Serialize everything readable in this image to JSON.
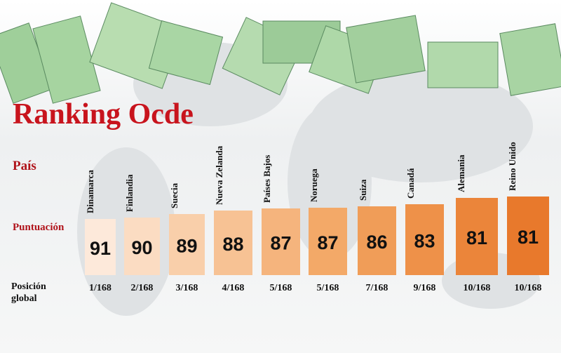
{
  "title": "Ranking Ocde",
  "labels": {
    "country": "País",
    "score": "Puntuación",
    "position": "Posición global"
  },
  "rows": [
    {
      "country": "Dinamarca",
      "score": 91,
      "position": "1/168"
    },
    {
      "country": "Finlandia",
      "score": 90,
      "position": "2/168"
    },
    {
      "country": "Suecia",
      "score": 89,
      "position": "3/168"
    },
    {
      "country": "Nueva Zelanda",
      "score": 88,
      "position": "4/168"
    },
    {
      "country": "Países Bajos",
      "score": 87,
      "position": "5/168"
    },
    {
      "country": "Noruega",
      "score": 87,
      "position": "5/168"
    },
    {
      "country": "Suiza",
      "score": 86,
      "position": "7/168"
    },
    {
      "country": "Canadá",
      "score": 83,
      "position": "9/168"
    },
    {
      "country": "Alemania",
      "score": 81,
      "position": "10/168"
    },
    {
      "country": "Reino Unido",
      "score": 81,
      "position": "10/168"
    }
  ]
}
